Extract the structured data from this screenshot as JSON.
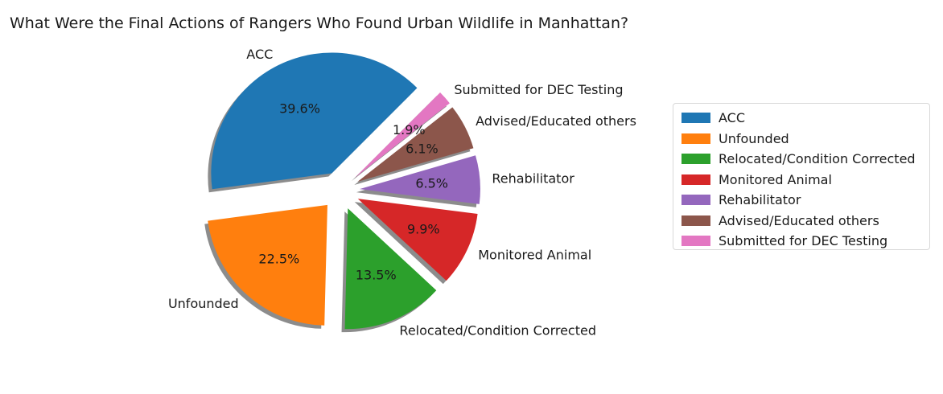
{
  "chart_data": {
    "type": "pie",
    "title": "What Were the Final Actions of Rangers Who Found Urban Wildlife in Manhattan?",
    "slices": [
      {
        "label": "ACC",
        "value": 39.6,
        "pct_label": "39.6%",
        "color": "#1f77b4"
      },
      {
        "label": "Unfounded",
        "value": 22.5,
        "pct_label": "22.5%",
        "color": "#ff7f0e"
      },
      {
        "label": "Relocated/Condition Corrected",
        "value": 13.5,
        "pct_label": "13.5%",
        "color": "#2ca02c"
      },
      {
        "label": "Monitored Animal",
        "value": 9.9,
        "pct_label": "9.9%",
        "color": "#d62728"
      },
      {
        "label": "Rehabilitator",
        "value": 6.5,
        "pct_label": "6.5%",
        "color": "#9467bd"
      },
      {
        "label": "Advised/Educated others",
        "value": 6.1,
        "pct_label": "6.1%",
        "color": "#8c564b"
      },
      {
        "label": "Submitted for DEC Testing",
        "value": 1.9,
        "pct_label": "1.9%",
        "color": "#e377c2"
      }
    ],
    "legend_position": "right",
    "start_angle_deg": 45,
    "exploded": true,
    "shadow": true
  }
}
